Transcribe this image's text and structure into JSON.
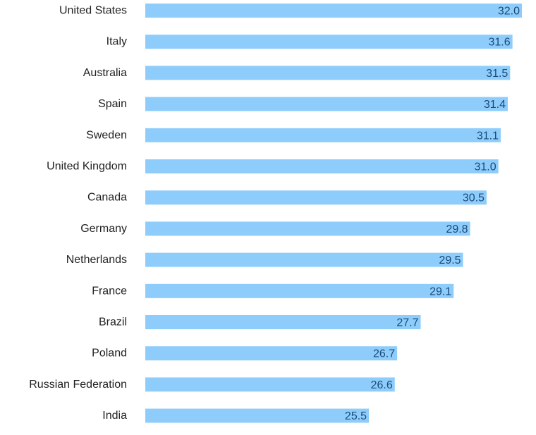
{
  "chart_data": {
    "type": "bar",
    "orientation": "horizontal",
    "categories": [
      "United States",
      "Italy",
      "Australia",
      "Spain",
      "Sweden",
      "United Kingdom",
      "Canada",
      "Germany",
      "Netherlands",
      "France",
      "Brazil",
      "Poland",
      "Russian Federation",
      "India"
    ],
    "values": [
      32.0,
      31.6,
      31.5,
      31.4,
      31.1,
      31.0,
      30.5,
      29.8,
      29.5,
      29.1,
      27.7,
      26.7,
      26.6,
      25.5
    ],
    "value_labels": [
      "32.0",
      "31.6",
      "31.5",
      "31.4",
      "31.1",
      "31.0",
      "30.5",
      "29.8",
      "29.5",
      "29.1",
      "27.7",
      "26.7",
      "26.6",
      "25.5"
    ],
    "xlim": [
      16.0,
      32.0
    ],
    "grid": false,
    "legend": "none",
    "colors": {
      "bar": "#8ecdfb",
      "value_text": "#1a4a7a",
      "category_text": "#222222"
    }
  }
}
